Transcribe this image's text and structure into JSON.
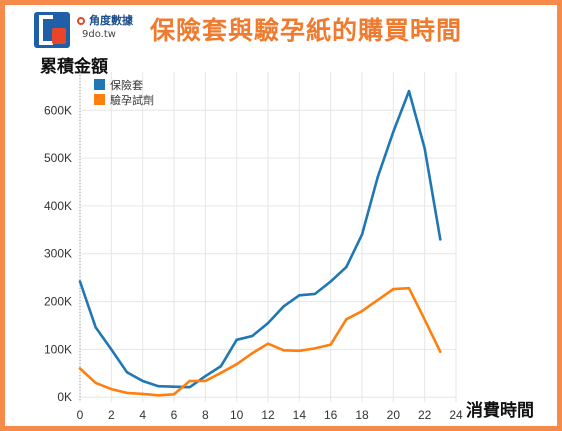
{
  "header": {
    "logo_text": "角度數據",
    "logo_url": "9do.tw",
    "title": "保險套與驗孕紙的購買時間"
  },
  "colors": {
    "border": "#f58a4a",
    "title": "#f07a2d",
    "series_condom": "#1f77b4",
    "series_test": "#ff7f0e"
  },
  "chart_data": {
    "type": "line",
    "title": "保險套與驗孕紙的購買時間",
    "xlabel": "消費時間",
    "ylabel": "累積金額",
    "xlim": [
      0,
      24
    ],
    "ylim": [
      -10000,
      680000
    ],
    "x_ticks": [
      0,
      2,
      4,
      6,
      8,
      10,
      12,
      14,
      16,
      18,
      20,
      22,
      24
    ],
    "x_tick_labels": [
      "0",
      "2",
      "4",
      "6",
      "8",
      "10",
      "12",
      "14",
      "16",
      "18",
      "20",
      "22",
      "24"
    ],
    "y_ticks": [
      0,
      100000,
      200000,
      300000,
      400000,
      500000,
      600000
    ],
    "y_tick_labels": [
      "0K",
      "100K",
      "200K",
      "300K",
      "400K",
      "500K",
      "600K"
    ],
    "grid": true,
    "legend_position": "top-left",
    "x": [
      0,
      1,
      2,
      3,
      4,
      5,
      6,
      7,
      8,
      9,
      10,
      11,
      12,
      13,
      14,
      15,
      16,
      17,
      18,
      19,
      20,
      21,
      22,
      23
    ],
    "series": [
      {
        "name": "保險套",
        "color": "#1f77b4",
        "values": [
          242000,
          146000,
          100000,
          52000,
          34000,
          23000,
          22000,
          21000,
          44000,
          65000,
          120000,
          128000,
          155000,
          190000,
          213000,
          216000,
          242000,
          272000,
          340000,
          460000,
          555000,
          640000,
          520000,
          330000
        ]
      },
      {
        "name": "驗孕試劑",
        "color": "#ff7f0e",
        "values": [
          60000,
          30000,
          17000,
          9000,
          7000,
          4000,
          6000,
          34000,
          34000,
          51000,
          69000,
          92000,
          112000,
          98000,
          97000,
          102000,
          110000,
          163000,
          180000,
          203000,
          226000,
          228000,
          162000,
          95000
        ]
      }
    ]
  }
}
